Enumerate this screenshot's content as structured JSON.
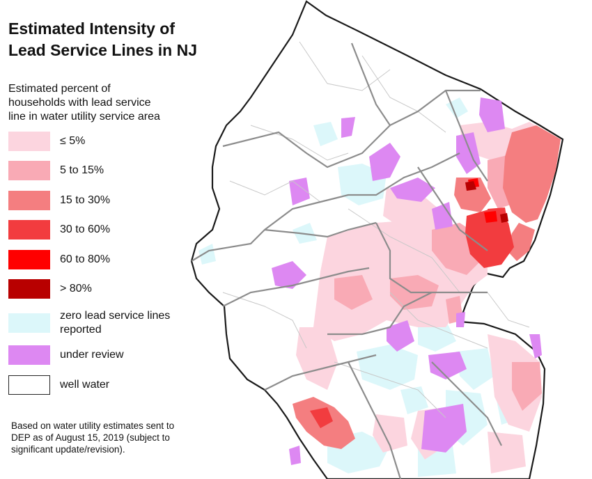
{
  "title_line1": "Estimated Intensity of",
  "title_line2": "Lead Service Lines in NJ",
  "legend": {
    "heading_line1": "Estimated percent of",
    "heading_line2": "households with lead service",
    "heading_line3": "line in water utility service area",
    "items": [
      {
        "label": "≤ 5%",
        "color": "#fcd5df"
      },
      {
        "label": "5 to 15%",
        "color": "#f9aab5"
      },
      {
        "label": "15 to 30%",
        "color": "#f47e80"
      },
      {
        "label": "30 to 60%",
        "color": "#f23c3f"
      },
      {
        "label": "60 to 80%",
        "color": "#ff0000"
      },
      {
        "label": "> 80%",
        "color": "#b80000"
      },
      {
        "label_line1": "zero lead service lines",
        "label_line2": "reported",
        "color": "#dcf7fa"
      },
      {
        "label": "under review",
        "color": "#dd88f2"
      },
      {
        "label": "well water",
        "color": "#ffffff"
      }
    ]
  },
  "footnote": {
    "line1": "Based on water utility estimates sent to",
    "line2": "DEP as of August 15, 2019 (subject to",
    "line3": "significant update/revision)."
  },
  "colors": {
    "county_border": "#8c8c8c",
    "state_border": "#1a1a1a",
    "municipal_line": "#c8c8c8"
  }
}
